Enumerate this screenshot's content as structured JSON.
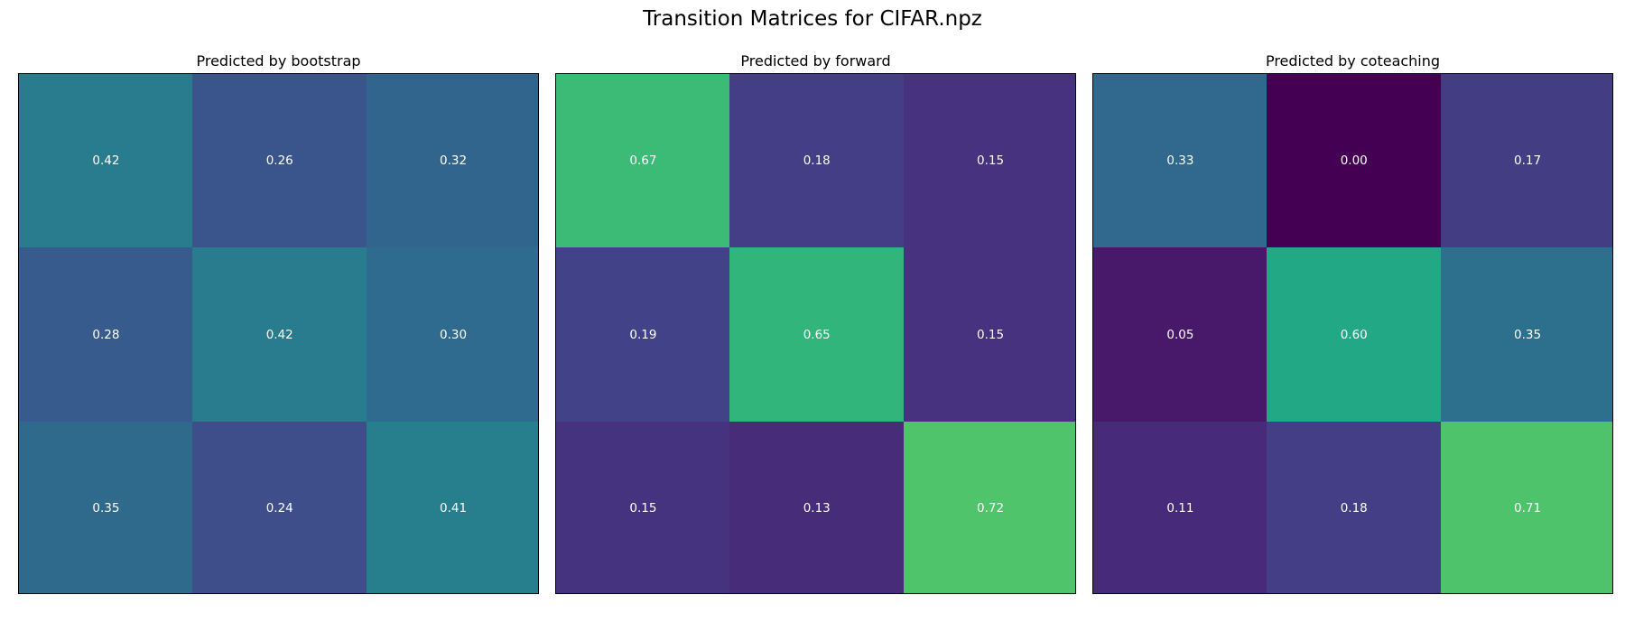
{
  "figure": {
    "title": "Transition Matrices for CIFAR.npz"
  },
  "chart_data": [
    {
      "type": "heatmap",
      "title": "Predicted by bootstrap",
      "colormap": "viridis",
      "vmin": 0.0,
      "vmax": 1.0,
      "grid": false,
      "axes_ticks": false,
      "matrix": [
        [
          0.42,
          0.26,
          0.32
        ],
        [
          0.28,
          0.42,
          0.3
        ],
        [
          0.35,
          0.24,
          0.41
        ]
      ],
      "labels": [
        [
          "0.42",
          "0.26",
          "0.32"
        ],
        [
          "0.28",
          "0.42",
          "0.30"
        ],
        [
          "0.35",
          "0.24",
          "0.41"
        ]
      ],
      "cell_colors": [
        [
          "#287c8e",
          "#3a548c",
          "#32658e"
        ],
        [
          "#375b8d",
          "#287c8e",
          "#2f6b8e"
        ],
        [
          "#2f6a8d",
          "#3d4e8a",
          "#277f8e"
        ]
      ]
    },
    {
      "type": "heatmap",
      "title": "Predicted by forward",
      "colormap": "viridis",
      "vmin": 0.0,
      "vmax": 1.0,
      "grid": false,
      "axes_ticks": false,
      "matrix": [
        [
          0.67,
          0.18,
          0.15
        ],
        [
          0.19,
          0.65,
          0.15
        ],
        [
          0.15,
          0.13,
          0.72
        ]
      ],
      "labels": [
        [
          "0.67",
          "0.18",
          "0.15"
        ],
        [
          "0.19",
          "0.65",
          "0.15"
        ],
        [
          "0.15",
          "0.13",
          "0.72"
        ]
      ],
      "cell_colors": [
        [
          "#3bbb75",
          "#433e85",
          "#46327e"
        ],
        [
          "#414287",
          "#31b57b",
          "#46327e"
        ],
        [
          "#46337f",
          "#472c7a",
          "#4fc46a"
        ]
      ]
    },
    {
      "type": "heatmap",
      "title": "Predicted by coteaching",
      "colormap": "viridis",
      "vmin": 0.0,
      "vmax": 1.0,
      "grid": false,
      "axes_ticks": false,
      "matrix": [
        [
          0.33,
          0.0,
          0.17
        ],
        [
          0.05,
          0.6,
          0.35
        ],
        [
          0.11,
          0.18,
          0.71
        ]
      ],
      "labels": [
        [
          "0.33",
          "0.00",
          "0.17"
        ],
        [
          "0.05",
          "0.60",
          "0.35"
        ],
        [
          "0.11",
          "0.18",
          "0.71"
        ]
      ],
      "cell_colors": [
        [
          "#31688e",
          "#440154",
          "#433d84"
        ],
        [
          "#48186a",
          "#22a884",
          "#2d708e"
        ],
        [
          "#472a7a",
          "#433e85",
          "#4ec36b"
        ]
      ]
    }
  ]
}
